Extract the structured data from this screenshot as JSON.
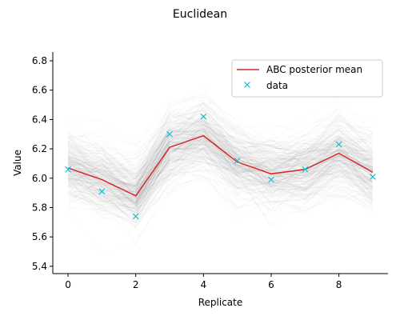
{
  "chart_data": {
    "type": "line",
    "title": "Euclidean",
    "xlabel": "Replicate",
    "ylabel": "Value",
    "xlim": [
      -0.45,
      9.45
    ],
    "ylim": [
      5.35,
      6.86
    ],
    "x_ticks": [
      0,
      2,
      4,
      6,
      8
    ],
    "y_ticks": [
      5.4,
      5.6,
      5.8,
      6.0,
      6.2,
      6.4,
      6.6,
      6.8
    ],
    "x_tick_labels": [
      "0",
      "2",
      "4",
      "6",
      "8"
    ],
    "y_tick_labels": [
      "5.4",
      "5.6",
      "5.8",
      "6.0",
      "6.2",
      "6.4",
      "6.6",
      "6.8"
    ],
    "grid": false,
    "legend": "top-right",
    "x": [
      0,
      1,
      2,
      3,
      4,
      5,
      6,
      7,
      8,
      9
    ],
    "series": [
      {
        "name": "ABC posterior mean",
        "kind": "line",
        "color": "#d62728",
        "values": [
          6.07,
          5.99,
          5.88,
          6.21,
          6.29,
          6.11,
          6.03,
          6.06,
          6.17,
          6.04
        ]
      },
      {
        "name": "data",
        "kind": "scatter",
        "marker": "x",
        "color": "#17becf",
        "values": [
          6.06,
          5.91,
          5.74,
          6.3,
          6.42,
          6.12,
          5.99,
          6.06,
          6.23,
          6.01
        ]
      }
    ],
    "posterior_samples": {
      "color": "#000000",
      "spread": 0.13
    }
  }
}
